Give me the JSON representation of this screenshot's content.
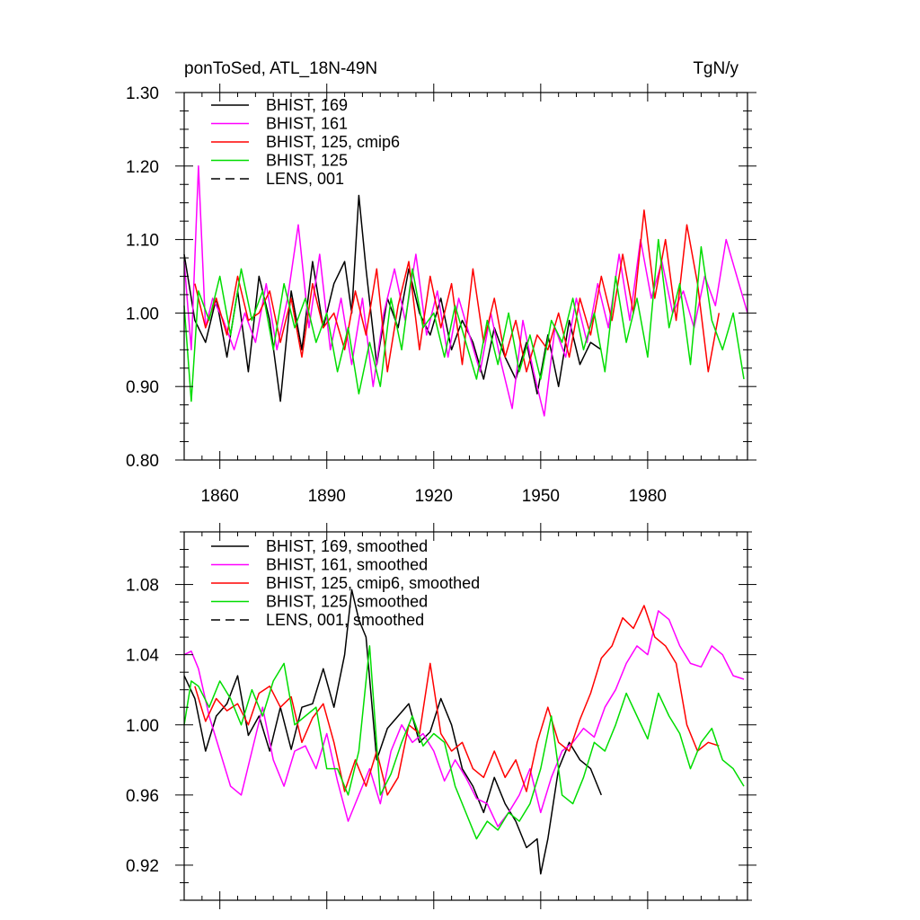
{
  "chart_data": [
    {
      "type": "line",
      "title_left": "ponToSed, ATL_18N-49N",
      "title_right": "TgN/y",
      "xlabel": "",
      "ylabel": "",
      "xlim": [
        1850,
        2008
      ],
      "ylim": [
        0.8,
        1.3
      ],
      "x_ticks": [
        1860,
        1890,
        1920,
        1950,
        1980
      ],
      "x_tick_labels": [
        "1860",
        "1890",
        "1920",
        "1950",
        "1980"
      ],
      "y_ticks": [
        0.8,
        0.9,
        1.0,
        1.1,
        1.2,
        1.3
      ],
      "y_tick_labels": [
        "0.80",
        "0.90",
        "1.00",
        "1.10",
        "1.20",
        "1.30"
      ],
      "legend_position": "top-left",
      "grid": false,
      "series": [
        {
          "name": "BHIST, 169",
          "color": "#000000",
          "dash": "solid",
          "x": [
            1850,
            1853,
            1856,
            1859,
            1862,
            1865,
            1868,
            1871,
            1874,
            1877,
            1880,
            1883,
            1886,
            1889,
            1892,
            1895,
            1897,
            1899,
            1901,
            1904,
            1907,
            1910,
            1913,
            1916,
            1919,
            1922,
            1925,
            1928,
            1931,
            1934,
            1937,
            1940,
            1943,
            1946,
            1949,
            1952,
            1955,
            1958,
            1961,
            1964,
            1967
          ],
          "values": [
            1.08,
            0.99,
            0.96,
            1.02,
            0.94,
            1.03,
            0.92,
            1.05,
            0.99,
            0.88,
            1.03,
            0.95,
            1.07,
            0.98,
            1.04,
            1.07,
            1.0,
            1.16,
            1.06,
            0.93,
            1.02,
            0.98,
            1.06,
            1.0,
            0.97,
            1.02,
            0.95,
            0.99,
            0.96,
            0.91,
            0.98,
            0.94,
            0.91,
            0.96,
            0.89,
            0.97,
            0.9,
            0.99,
            0.93,
            0.96,
            0.95
          ]
        },
        {
          "name": "BHIST, 161",
          "color": "#ff00ff",
          "dash": "solid",
          "x": [
            1850,
            1852,
            1854,
            1856,
            1858,
            1861,
            1864,
            1867,
            1870,
            1873,
            1876,
            1879,
            1882,
            1885,
            1888,
            1891,
            1894,
            1897,
            1900,
            1903,
            1906,
            1909,
            1912,
            1915,
            1918,
            1921,
            1924,
            1927,
            1930,
            1933,
            1936,
            1939,
            1942,
            1945,
            1948,
            1951,
            1954,
            1957,
            1960,
            1963,
            1966,
            1969,
            1972,
            1975,
            1978,
            1981,
            1984,
            1987,
            1990,
            1993,
            1996,
            1999,
            2002,
            2005,
            2008
          ],
          "values": [
            1.07,
            0.95,
            1.2,
            0.98,
            1.02,
            0.99,
            0.95,
            1.0,
            0.96,
            1.04,
            0.95,
            1.02,
            1.12,
            0.98,
            1.08,
            0.95,
            1.02,
            0.93,
            1.02,
            0.9,
            1.0,
            1.06,
            0.99,
            1.08,
            0.97,
            1.03,
            0.94,
            1.02,
            0.97,
            0.92,
            1.0,
            0.93,
            0.87,
            0.99,
            0.92,
            0.86,
            0.98,
            0.94,
            1.02,
            0.96,
            1.04,
            0.98,
            1.08,
            0.99,
            1.1,
            1.02,
            1.07,
            1.0,
            1.03,
            0.98,
            1.05,
            1.01,
            1.1,
            1.05,
            1.0
          ]
        },
        {
          "name": "BHIST, 125, cmip6",
          "color": "#ff0000",
          "dash": "solid",
          "x": [
            1853,
            1856,
            1859,
            1862,
            1865,
            1868,
            1871,
            1874,
            1877,
            1880,
            1883,
            1886,
            1889,
            1892,
            1895,
            1898,
            1901,
            1904,
            1907,
            1910,
            1913,
            1916,
            1919,
            1922,
            1925,
            1928,
            1931,
            1934,
            1937,
            1940,
            1943,
            1946,
            1949,
            1952,
            1955,
            1958,
            1961,
            1964,
            1967,
            1970,
            1973,
            1976,
            1979,
            1982,
            1985,
            1988,
            1991,
            1994,
            1997,
            2000
          ],
          "values": [
            1.04,
            0.98,
            1.02,
            0.97,
            1.05,
            0.99,
            1.0,
            1.03,
            0.96,
            1.02,
            0.94,
            1.04,
            0.98,
            1.0,
            0.95,
            1.03,
            0.97,
            1.06,
            0.92,
            1.01,
            1.07,
            0.95,
            1.05,
            0.98,
            1.04,
            0.93,
            1.06,
            0.96,
            1.02,
            0.94,
            0.99,
            0.92,
            0.97,
            0.95,
            1.0,
            0.94,
            1.02,
            0.97,
            1.05,
            0.99,
            1.08,
            1.0,
            1.14,
            1.02,
            1.1,
            0.99,
            1.12,
            1.04,
            0.92,
            1.0
          ]
        },
        {
          "name": "BHIST, 125",
          "color": "#00dd00",
          "dash": "solid",
          "x": [
            1850,
            1852,
            1854,
            1857,
            1860,
            1863,
            1866,
            1869,
            1872,
            1875,
            1878,
            1881,
            1884,
            1887,
            1890,
            1893,
            1896,
            1899,
            1902,
            1905,
            1908,
            1911,
            1914,
            1917,
            1920,
            1923,
            1926,
            1929,
            1932,
            1935,
            1938,
            1941,
            1944,
            1947,
            1950,
            1953,
            1956,
            1959,
            1962,
            1965,
            1968,
            1971,
            1974,
            1977,
            1980,
            1983,
            1986,
            1989,
            1992,
            1995,
            1998,
            2001,
            2004,
            2007
          ],
          "values": [
            1.01,
            0.88,
            1.03,
            0.99,
            1.05,
            0.97,
            1.06,
            0.99,
            1.03,
            0.95,
            1.04,
            0.98,
            1.02,
            0.96,
            1.0,
            0.92,
            0.98,
            0.89,
            0.96,
            0.9,
            1.02,
            0.95,
            1.06,
            0.98,
            1.0,
            0.94,
            1.01,
            0.96,
            0.91,
            0.99,
            0.93,
            1.0,
            0.92,
            0.97,
            0.91,
            0.99,
            0.96,
            1.02,
            0.95,
            1.0,
            0.92,
            1.05,
            0.96,
            1.02,
            0.94,
            1.1,
            0.98,
            1.04,
            0.93,
            1.09,
            0.99,
            0.95,
            1.0,
            0.91
          ]
        }
      ],
      "legend_entries": [
        {
          "label": "BHIST, 169",
          "color": "#000000",
          "dash": "solid"
        },
        {
          "label": "BHIST, 161",
          "color": "#ff00ff",
          "dash": "solid"
        },
        {
          "label": "BHIST, 125, cmip6",
          "color": "#ff0000",
          "dash": "solid"
        },
        {
          "label": "BHIST, 125",
          "color": "#00dd00",
          "dash": "solid"
        },
        {
          "label": "LENS, 001",
          "color": "#000000",
          "dash": "dashed"
        }
      ]
    },
    {
      "type": "line",
      "title_left": "",
      "title_right": "",
      "xlabel": "",
      "ylabel": "",
      "xlim": [
        1850,
        2008
      ],
      "ylim": [
        0.9,
        1.11
      ],
      "x_ticks": [
        1860,
        1890,
        1920,
        1950,
        1980
      ],
      "x_tick_labels": [],
      "y_ticks": [
        0.92,
        0.96,
        1.0,
        1.04,
        1.08
      ],
      "y_tick_labels": [
        "0.92",
        "0.96",
        "1.00",
        "1.04",
        "1.08"
      ],
      "legend_position": "top-left",
      "grid": false,
      "series": [
        {
          "name": "BHIST, 169, smoothed",
          "color": "#000000",
          "dash": "solid",
          "x": [
            1850,
            1853,
            1856,
            1859,
            1862,
            1865,
            1868,
            1871,
            1874,
            1877,
            1880,
            1883,
            1886,
            1889,
            1892,
            1895,
            1897,
            1899,
            1901,
            1904,
            1907,
            1910,
            1913,
            1916,
            1919,
            1922,
            1925,
            1928,
            1931,
            1934,
            1937,
            1940,
            1943,
            1946,
            1949,
            1950,
            1952,
            1955,
            1958,
            1961,
            1964,
            1967
          ],
          "values": [
            1.028,
            1.015,
            0.985,
            1.005,
            1.012,
            1.028,
            0.994,
            1.005,
            0.985,
            1.01,
            0.986,
            1.01,
            1.012,
            1.032,
            1.01,
            1.04,
            1.077,
            1.06,
            1.05,
            0.98,
            0.998,
            1.005,
            1.012,
            0.99,
            0.996,
            1.015,
            1.0,
            0.975,
            0.965,
            0.95,
            0.97,
            0.955,
            0.945,
            0.93,
            0.935,
            0.915,
            0.935,
            0.975,
            0.99,
            0.98,
            0.975,
            0.96
          ]
        },
        {
          "name": "BHIST, 161, smoothed",
          "color": "#ff00ff",
          "dash": "solid",
          "x": [
            1850,
            1852,
            1854,
            1857,
            1860,
            1863,
            1866,
            1869,
            1872,
            1875,
            1878,
            1881,
            1884,
            1887,
            1890,
            1893,
            1896,
            1899,
            1902,
            1905,
            1908,
            1911,
            1914,
            1917,
            1920,
            1923,
            1926,
            1929,
            1932,
            1935,
            1938,
            1941,
            1944,
            1947,
            1950,
            1953,
            1956,
            1959,
            1962,
            1965,
            1968,
            1971,
            1974,
            1977,
            1980,
            1983,
            1986,
            1989,
            1992,
            1995,
            1998,
            2001,
            2004,
            2007
          ],
          "values": [
            1.04,
            1.042,
            1.032,
            1.005,
            0.985,
            0.965,
            0.96,
            0.985,
            1.01,
            0.98,
            0.965,
            0.985,
            0.988,
            0.975,
            0.995,
            0.968,
            0.945,
            0.96,
            0.975,
            0.955,
            0.985,
            1.0,
            0.99,
            0.995,
            0.985,
            0.968,
            0.98,
            0.97,
            0.958,
            0.955,
            0.942,
            0.95,
            0.96,
            0.975,
            0.95,
            0.97,
            0.985,
            0.99,
            0.998,
            0.993,
            1.01,
            1.02,
            1.035,
            1.045,
            1.04,
            1.065,
            1.06,
            1.045,
            1.035,
            1.033,
            1.045,
            1.04,
            1.028,
            1.026
          ]
        },
        {
          "name": "BHIST, 125, cmip6, smoothed",
          "color": "#ff0000",
          "dash": "solid",
          "x": [
            1853,
            1856,
            1859,
            1862,
            1865,
            1868,
            1871,
            1874,
            1877,
            1880,
            1883,
            1886,
            1889,
            1892,
            1895,
            1898,
            1901,
            1904,
            1907,
            1910,
            1913,
            1916,
            1919,
            1922,
            1925,
            1928,
            1931,
            1934,
            1937,
            1940,
            1943,
            1946,
            1949,
            1952,
            1955,
            1958,
            1961,
            1964,
            1967,
            1970,
            1973,
            1976,
            1979,
            1982,
            1985,
            1988,
            1991,
            1994,
            1997,
            2000
          ],
          "values": [
            1.022,
            1.002,
            1.015,
            1.008,
            1.012,
            1.0,
            1.018,
            1.022,
            1.01,
            1.016,
            0.99,
            1.004,
            1.012,
            0.99,
            0.962,
            0.98,
            0.965,
            0.985,
            0.96,
            0.97,
            1.0,
            0.995,
            1.035,
            0.995,
            0.985,
            0.99,
            0.975,
            0.97,
            0.985,
            0.97,
            0.98,
            0.962,
            0.99,
            1.01,
            0.99,
            0.985,
            1.003,
            1.018,
            1.038,
            1.045,
            1.061,
            1.055,
            1.068,
            1.05,
            1.045,
            1.035,
            1.0,
            0.985,
            0.99,
            0.988
          ]
        },
        {
          "name": "BHIST, 125, smoothed",
          "color": "#00dd00",
          "dash": "solid",
          "x": [
            1850,
            1852,
            1854,
            1857,
            1860,
            1863,
            1866,
            1869,
            1872,
            1875,
            1878,
            1881,
            1884,
            1887,
            1890,
            1893,
            1896,
            1899,
            1902,
            1905,
            1908,
            1911,
            1914,
            1917,
            1920,
            1923,
            1926,
            1929,
            1932,
            1935,
            1938,
            1941,
            1944,
            1947,
            1950,
            1953,
            1956,
            1959,
            1962,
            1965,
            1968,
            1971,
            1974,
            1977,
            1980,
            1983,
            1986,
            1989,
            1992,
            1995,
            1998,
            2001,
            2004,
            2007
          ],
          "values": [
            1.0,
            1.025,
            1.022,
            1.01,
            1.025,
            1.015,
            1.0,
            1.02,
            1.005,
            1.025,
            1.035,
            1.0,
            1.005,
            1.01,
            0.975,
            0.975,
            0.96,
            0.985,
            1.045,
            0.96,
            0.972,
            0.99,
            1.005,
            0.988,
            0.995,
            0.99,
            0.965,
            0.95,
            0.935,
            0.945,
            0.94,
            0.95,
            0.945,
            0.955,
            0.975,
            1.005,
            0.96,
            0.955,
            0.97,
            0.99,
            0.985,
            1.0,
            1.018,
            1.005,
            0.992,
            1.018,
            1.005,
            0.995,
            0.975,
            0.99,
            0.998,
            0.98,
            0.975,
            0.965
          ]
        }
      ],
      "legend_entries": [
        {
          "label": "BHIST, 169, smoothed",
          "color": "#000000",
          "dash": "solid"
        },
        {
          "label": "BHIST, 161, smoothed",
          "color": "#ff00ff",
          "dash": "solid"
        },
        {
          "label": "BHIST, 125, cmip6, smoothed",
          "color": "#ff0000",
          "dash": "solid"
        },
        {
          "label": "BHIST, 125, smoothed",
          "color": "#00dd00",
          "dash": "solid"
        },
        {
          "label": "LENS, 001, smoothed",
          "color": "#000000",
          "dash": "dashed"
        }
      ]
    }
  ]
}
